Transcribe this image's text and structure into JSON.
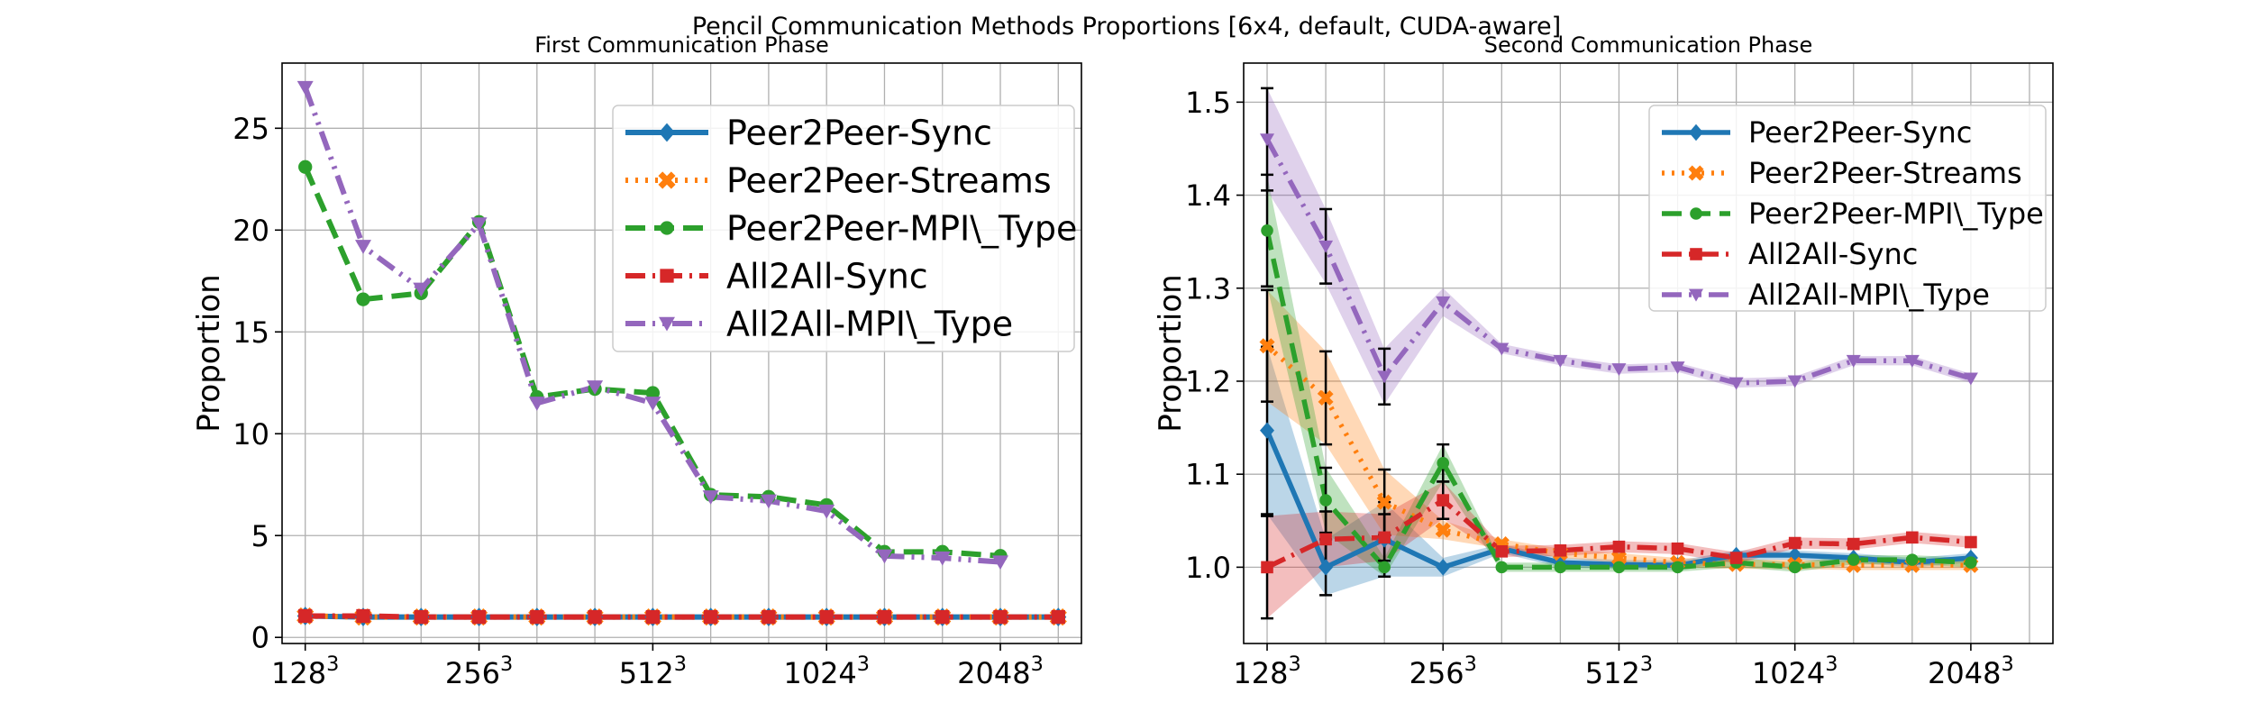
{
  "figure": {
    "suptitle": "Pencil Communication Methods Proportions [6x4, default, CUDA-aware]"
  },
  "chart_data": [
    {
      "type": "line",
      "title": "First Communication Phase",
      "xlabel": "",
      "ylabel": "Proportion",
      "x": [
        1,
        2,
        3,
        4,
        5,
        6,
        7,
        8,
        9,
        10,
        11,
        12,
        13,
        14
      ],
      "xticks": [
        {
          "x": 1,
          "base": "128",
          "exp": "3"
        },
        {
          "x": 4,
          "base": "256",
          "exp": "3"
        },
        {
          "x": 7,
          "base": "512",
          "exp": "3"
        },
        {
          "x": 10,
          "base": "1024",
          "exp": "3"
        },
        {
          "x": 13,
          "base": "2048",
          "exp": "3"
        }
      ],
      "ylim": [
        -0.3,
        28.2
      ],
      "yticks": [
        0,
        5,
        10,
        15,
        20,
        25
      ],
      "grid": true,
      "legend": "top-right",
      "series": [
        {
          "name": "Peer2Peer-Sync",
          "color": "#1f77b4",
          "dash": "solid",
          "marker": "diamond",
          "values": [
            1.05,
            1.0,
            1.0,
            1.0,
            1.0,
            1.0,
            1.0,
            1.0,
            1.0,
            1.0,
            1.0,
            1.0,
            1.0,
            1.0
          ]
        },
        {
          "name": "Peer2Peer-Streams",
          "color": "#ff7f0e",
          "dash": "dotted",
          "marker": "x",
          "values": [
            1.05,
            1.0,
            1.0,
            1.0,
            1.0,
            1.0,
            1.0,
            1.0,
            1.0,
            1.0,
            1.0,
            1.0,
            1.0,
            1.0
          ]
        },
        {
          "name": "Peer2Peer-MPI\\_Type",
          "color": "#2ca02c",
          "dash": "dashed",
          "marker": "circle",
          "values": [
            23.1,
            16.6,
            16.9,
            20.4,
            11.8,
            12.2,
            12.0,
            7.0,
            6.9,
            6.5,
            4.2,
            4.2,
            4.0,
            null
          ]
        },
        {
          "name": "All2All-Sync",
          "color": "#d62728",
          "dash": "dashdot",
          "marker": "square",
          "values": [
            1.05,
            1.05,
            1.0,
            1.0,
            1.0,
            1.0,
            1.0,
            1.0,
            1.0,
            1.0,
            1.0,
            1.0,
            1.0,
            1.0
          ]
        },
        {
          "name": "All2All-MPI\\_Type",
          "color": "#9467bd",
          "dash": "dashdotdot",
          "marker": "triangle-down",
          "values": [
            27.0,
            19.2,
            17.1,
            20.3,
            11.5,
            12.3,
            11.5,
            6.9,
            6.7,
            6.2,
            4.0,
            3.9,
            3.7,
            null
          ]
        }
      ]
    },
    {
      "type": "line",
      "title": "Second Communication Phase",
      "xlabel": "",
      "ylabel": "Proportion",
      "x": [
        1,
        2,
        3,
        4,
        5,
        6,
        7,
        8,
        9,
        10,
        11,
        12,
        13,
        14
      ],
      "xticks": [
        {
          "x": 1,
          "base": "128",
          "exp": "3"
        },
        {
          "x": 4,
          "base": "256",
          "exp": "3"
        },
        {
          "x": 7,
          "base": "512",
          "exp": "3"
        },
        {
          "x": 10,
          "base": "1024",
          "exp": "3"
        },
        {
          "x": 13,
          "base": "2048",
          "exp": "3"
        }
      ],
      "ylim": [
        0.918,
        1.542
      ],
      "yticks": [
        1.0,
        1.1,
        1.2,
        1.3,
        1.4,
        1.5
      ],
      "grid": true,
      "legend": "top-right",
      "series": [
        {
          "name": "Peer2Peer-Sync",
          "color": "#1f77b4",
          "dash": "solid",
          "marker": "diamond",
          "values": [
            1.147,
            1.0,
            1.03,
            1.0,
            1.02,
            1.005,
            1.003,
            1.002,
            1.013,
            1.013,
            1.01,
            1.005,
            1.01,
            null
          ],
          "err": [
            0.09,
            0.03,
            0.04,
            0.01,
            0.005,
            0.005,
            0.005,
            0.005,
            0.005,
            0.005,
            0.005,
            0.005,
            0.005,
            0
          ]
        },
        {
          "name": "Peer2Peer-Streams",
          "color": "#ff7f0e",
          "dash": "dotted",
          "marker": "x",
          "values": [
            1.238,
            1.182,
            1.07,
            1.04,
            1.025,
            1.015,
            1.01,
            1.005,
            1.003,
            1.003,
            1.002,
            1.002,
            1.002,
            null
          ],
          "err": [
            0.06,
            0.05,
            0.035,
            0.01,
            0.005,
            0.005,
            0.005,
            0.005,
            0.005,
            0.005,
            0.005,
            0.005,
            0.005,
            0
          ]
        },
        {
          "name": "Peer2Peer-MPI\\_Type",
          "color": "#2ca02c",
          "dash": "dashed",
          "marker": "circle",
          "values": [
            1.362,
            1.072,
            1.0,
            1.112,
            1.0,
            1.0,
            1.0,
            1.0,
            1.005,
            1.0,
            1.008,
            1.008,
            1.005,
            null
          ],
          "err": [
            0.06,
            0.035,
            0.01,
            0.02,
            0.005,
            0.005,
            0.005,
            0.005,
            0.005,
            0.005,
            0.005,
            0.005,
            0.005,
            0
          ]
        },
        {
          "name": "All2All-Sync",
          "color": "#d62728",
          "dash": "dashdot",
          "marker": "square",
          "values": [
            1.0,
            1.03,
            1.032,
            1.072,
            1.017,
            1.018,
            1.022,
            1.02,
            1.01,
            1.026,
            1.025,
            1.032,
            1.027,
            null
          ],
          "err": [
            0.055,
            0.03,
            0.025,
            0.02,
            0.006,
            0.006,
            0.006,
            0.006,
            0.006,
            0.006,
            0.006,
            0.006,
            0.006,
            0
          ]
        },
        {
          "name": "All2All-MPI\\_Type",
          "color": "#9467bd",
          "dash": "dashdotdot",
          "marker": "triangle-down",
          "values": [
            1.46,
            1.345,
            1.205,
            1.285,
            1.235,
            1.222,
            1.213,
            1.215,
            1.198,
            1.2,
            1.222,
            1.222,
            1.203,
            null
          ],
          "err": [
            0.055,
            0.04,
            0.03,
            0.015,
            0.005,
            0.005,
            0.005,
            0.005,
            0.005,
            0.005,
            0.005,
            0.005,
            0.005,
            0
          ]
        }
      ]
    }
  ]
}
